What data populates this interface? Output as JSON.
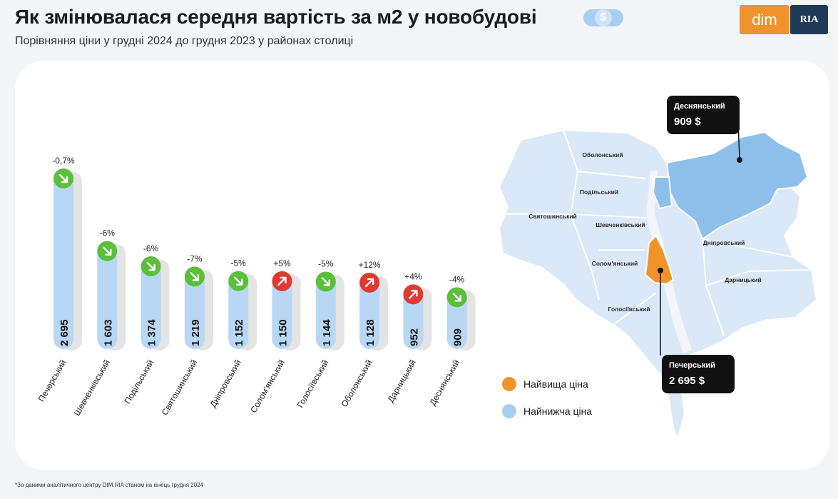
{
  "header": {
    "title": "Як змінювалася середня вартість за м2 у новобудові",
    "dollar_symbol": "$",
    "subtitle": "Порівняння ціни у грудні 2024 до грудня 2023 у районах столиці"
  },
  "logo": {
    "dim": "dim",
    "ria": "RIA"
  },
  "colors": {
    "bar": "#b8d7f5",
    "bar_shadow": "#e4e4e4",
    "up": "#e03a33",
    "down": "#5bbf3a",
    "highest": "#f0932b",
    "lowest": "#a8cff2",
    "map_base": "#dae8f8",
    "map_border": "#ffffff"
  },
  "chart_data": {
    "type": "bar",
    "categories": [
      "Печерський",
      "Шевченківський",
      "Подільський",
      "Святошинський",
      "Дніпровський",
      "Солом'янський",
      "Голосіївський",
      "Оболонський",
      "Дарницький",
      "Деснянський"
    ],
    "values": [
      2695,
      1603,
      1374,
      1219,
      1152,
      1150,
      1144,
      1128,
      952,
      909
    ],
    "value_labels": [
      "2 695",
      "1 603",
      "1 374",
      "1 219",
      "1 152",
      "1 150",
      "1 144",
      "1 128",
      "952",
      "909"
    ],
    "changes": [
      "-0,7%",
      "-6%",
      "-6%",
      "-7%",
      "-5%",
      "+5%",
      "-5%",
      "+12%",
      "+4%",
      "-4%"
    ],
    "directions": [
      "down",
      "down",
      "down",
      "down",
      "down",
      "up",
      "down",
      "up",
      "up",
      "down"
    ],
    "title": "Як змінювалася середня вартість за м2 у новобудові",
    "xlabel": "",
    "ylabel": "",
    "ylim": [
      0,
      2695
    ],
    "grid": false
  },
  "map": {
    "district_labels": [
      "Оболонський",
      "Подільський",
      "Святошинський",
      "Шевченківський",
      "Солом'янський",
      "Дніпровський",
      "Дарницький",
      "Голосіївський"
    ],
    "highest": {
      "name": "Печерський",
      "value": "2 695 $"
    },
    "lowest": {
      "name": "Деснянський",
      "value": "909 $"
    }
  },
  "legend": {
    "highest_label": "Найвища ціна",
    "lowest_label": "Найнижча ціна"
  },
  "footnote": "*За даними аналітичного центру DIM.RIA станом на кінець грудня 2024"
}
